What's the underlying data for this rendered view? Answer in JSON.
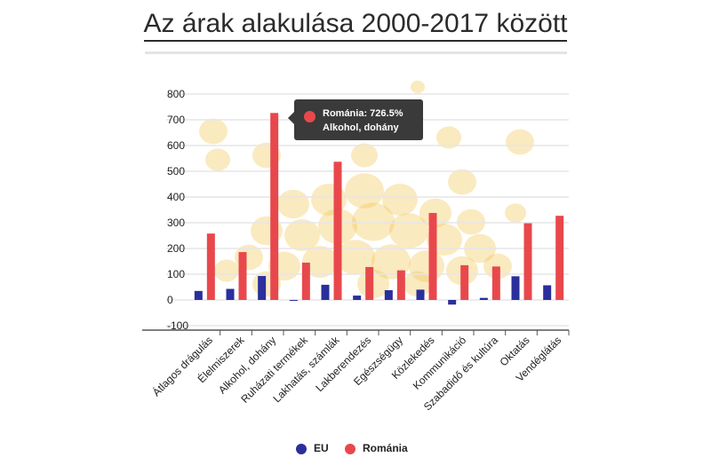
{
  "title": "Az árak alakulása 2000-2017 között",
  "colors": {
    "eu": "#2a2f9b",
    "romania": "#e8484c",
    "grid": "#e6e6e6",
    "coins": "#f0c24a"
  },
  "tooltip": {
    "line1": "Románia: 726.5%",
    "line2": "Alkohol, dohány"
  },
  "legend": {
    "eu": "EU",
    "romania": "Románia"
  },
  "chart_data": {
    "type": "bar",
    "title": "Az árak alakulása 2000-2017 között",
    "xlabel": "",
    "ylabel": "",
    "ylim": [
      -100,
      800
    ],
    "yticks": [
      -100,
      0,
      100,
      200,
      300,
      400,
      500,
      600,
      700,
      800
    ],
    "ytick_labels": [
      "-100",
      "0",
      "100",
      "200",
      "300",
      "400",
      "500",
      "600",
      "700",
      "800"
    ],
    "grid": true,
    "legend_position": "bottom",
    "categories": [
      "Átlagos drágulás",
      "Élelmiszerek",
      "Alkohol, dohány",
      "Ruházati termékek",
      "Lakhatás, számlák",
      "Lakberendezés",
      "Egészségügy",
      "Közlekedés",
      "Kommunikáció",
      "Szabadidő és kultúra",
      "Oktatás",
      "Vendéglátás"
    ],
    "series": [
      {
        "name": "EU",
        "values": [
          35,
          43,
          93,
          0,
          59,
          17,
          38,
          40,
          -18,
          8,
          92,
          57
        ]
      },
      {
        "name": "Románia",
        "values": [
          258,
          186,
          726.5,
          145,
          537,
          128,
          115,
          338,
          135,
          130,
          298,
          327
        ]
      }
    ]
  }
}
